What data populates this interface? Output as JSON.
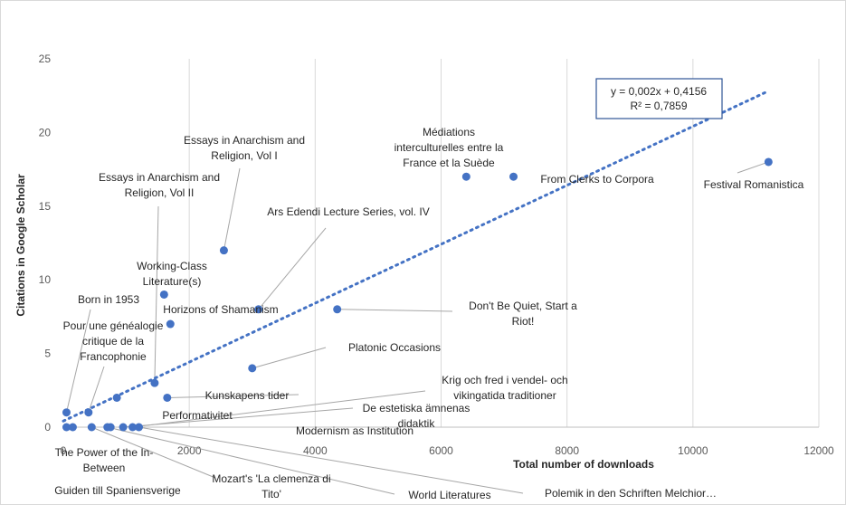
{
  "chart_data": {
    "type": "scatter",
    "title": "",
    "xlabel": "Total number of downloads",
    "ylabel": "Citations in Google Scholar",
    "xlim": [
      0,
      12000
    ],
    "ylim": [
      0,
      25
    ],
    "x_ticks": [
      "0",
      "2000",
      "4000",
      "6000",
      "8000",
      "10000",
      "12000"
    ],
    "y_ticks": [
      "0",
      "5",
      "10",
      "15",
      "20",
      "25"
    ],
    "grid": "vertical",
    "marker_color": "#4472c4",
    "trendline": {
      "type": "linear",
      "slope": 0.002,
      "intercept": 0.4156,
      "equation": "y = 0,002x + 0,4156",
      "r_squared": "R² = 0,7859",
      "color": "#4472c4"
    },
    "points": [
      {
        "label": "Festival Romanistica",
        "x": 11200,
        "y": 18
      },
      {
        "label": "From Clerks to Corpora",
        "x": 7150,
        "y": 17
      },
      {
        "label": "Médiations interculturelles entre la France et la Suède",
        "x": 6400,
        "y": 17
      },
      {
        "label": "Don't Be Quiet, Start a Riot!",
        "x": 4350,
        "y": 8
      },
      {
        "label": "Essays in Anarchism and Religion, Vol I",
        "x": 2550,
        "y": 12
      },
      {
        "label": "Ars Edendi Lecture Series, vol. IV",
        "x": 3100,
        "y": 8
      },
      {
        "label": "Platonic Occasions",
        "x": 3000,
        "y": 4
      },
      {
        "label": "Working-Class Literature(s)",
        "x": 1600,
        "y": 9
      },
      {
        "label": "Horizons of Shamanism",
        "x": 1700,
        "y": 7
      },
      {
        "label": "Essays in Anarchism and Religion, Vol II",
        "x": 1450,
        "y": 3
      },
      {
        "label": "Kunskapens tider",
        "x": 1650,
        "y": 2
      },
      {
        "label": "Performativitet",
        "x": 850,
        "y": 2
      },
      {
        "label": "Pour une généalogie critique de la Francophonie",
        "x": 400,
        "y": 1
      },
      {
        "label": "Born in 1953",
        "x": 50,
        "y": 1
      },
      {
        "label": "Krig och fred i vendel- och vikingatida traditioner",
        "x": 1100,
        "y": 0
      },
      {
        "label": "De estetiska ämnenas didaktik",
        "x": 950,
        "y": 0
      },
      {
        "label": "Modernism as Institution",
        "x": 750,
        "y": 0
      },
      {
        "label": "The Power of the In-Between",
        "x": 50,
        "y": 0
      },
      {
        "label": "Guiden till Spaniensverige",
        "x": 150,
        "y": 0
      },
      {
        "label": "Mozart's 'La clemenza di Tito'",
        "x": 450,
        "y": 0
      },
      {
        "label": "World Literatures",
        "x": 700,
        "y": 0
      },
      {
        "label": "Polemik in den Schriften Melchior…",
        "x": 1200,
        "y": 0
      }
    ]
  }
}
